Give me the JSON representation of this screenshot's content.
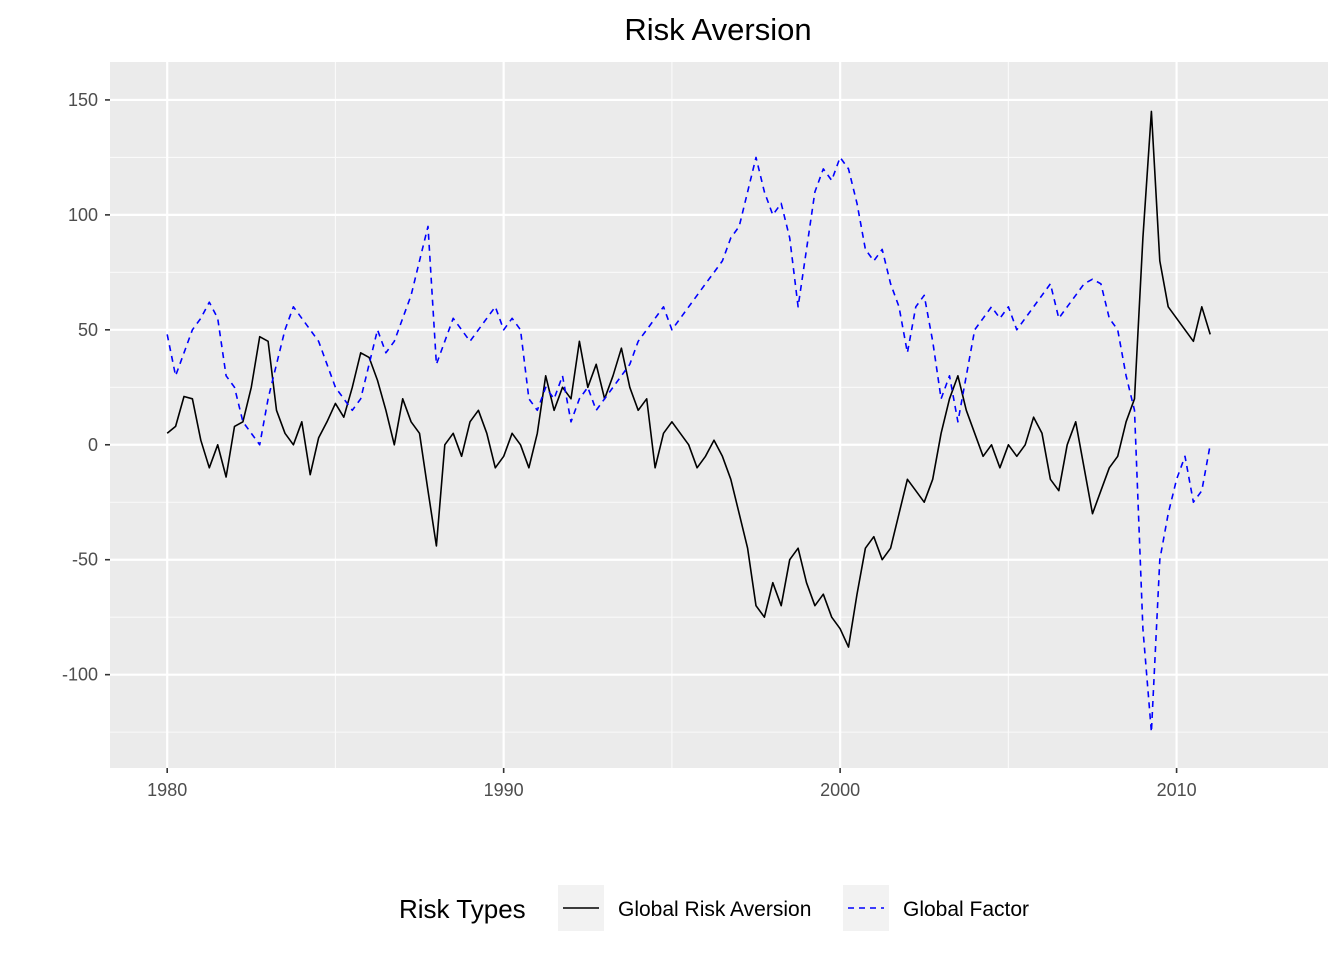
{
  "chart_data": {
    "type": "line",
    "title": "Risk Aversion",
    "xlabel": "",
    "ylabel": "",
    "xlim": [
      1978.3,
      2014.5
    ],
    "ylim": [
      -140.6,
      166.5
    ],
    "x_ticks": [
      1980,
      1990,
      2000,
      2010
    ],
    "x_minor_ticks": [
      1985,
      1995,
      2005
    ],
    "y_ticks": [
      -100,
      -50,
      0,
      50,
      100,
      150
    ],
    "y_minor_ticks": [
      -125,
      -75,
      -25,
      25,
      75,
      125
    ],
    "grid": true,
    "legend": {
      "title": "Risk Types",
      "position": "bottom"
    },
    "series": [
      {
        "name": "Global Risk Aversion",
        "color": "#000000",
        "linetype": "solid",
        "points": [
          [
            1980.0,
            5
          ],
          [
            1980.25,
            8
          ],
          [
            1980.5,
            21
          ],
          [
            1980.75,
            20
          ],
          [
            1981.0,
            2
          ],
          [
            1981.25,
            -10
          ],
          [
            1981.5,
            0
          ],
          [
            1981.75,
            -14
          ],
          [
            1982.0,
            8
          ],
          [
            1982.25,
            10
          ],
          [
            1982.5,
            25
          ],
          [
            1982.75,
            47
          ],
          [
            1983.0,
            45
          ],
          [
            1983.25,
            15
          ],
          [
            1983.5,
            5
          ],
          [
            1983.75,
            0
          ],
          [
            1984.0,
            10
          ],
          [
            1984.25,
            -13
          ],
          [
            1984.5,
            3
          ],
          [
            1984.75,
            10
          ],
          [
            1985.0,
            18
          ],
          [
            1985.25,
            12
          ],
          [
            1985.5,
            25
          ],
          [
            1985.75,
            40
          ],
          [
            1986.0,
            38
          ],
          [
            1986.25,
            28
          ],
          [
            1986.5,
            15
          ],
          [
            1986.75,
            0
          ],
          [
            1987.0,
            20
          ],
          [
            1987.25,
            10
          ],
          [
            1987.5,
            5
          ],
          [
            1987.75,
            -20
          ],
          [
            1988.0,
            -44
          ],
          [
            1988.25,
            0
          ],
          [
            1988.5,
            5
          ],
          [
            1988.75,
            -5
          ],
          [
            1989.0,
            10
          ],
          [
            1989.25,
            15
          ],
          [
            1989.5,
            5
          ],
          [
            1989.75,
            -10
          ],
          [
            1990.0,
            -5
          ],
          [
            1990.25,
            5
          ],
          [
            1990.5,
            0
          ],
          [
            1990.75,
            -10
          ],
          [
            1991.0,
            5
          ],
          [
            1991.25,
            30
          ],
          [
            1991.5,
            15
          ],
          [
            1991.75,
            25
          ],
          [
            1992.0,
            20
          ],
          [
            1992.25,
            45
          ],
          [
            1992.5,
            25
          ],
          [
            1992.75,
            35
          ],
          [
            1993.0,
            20
          ],
          [
            1993.25,
            30
          ],
          [
            1993.5,
            42
          ],
          [
            1993.75,
            25
          ],
          [
            1994.0,
            15
          ],
          [
            1994.25,
            20
          ],
          [
            1994.5,
            -10
          ],
          [
            1994.75,
            5
          ],
          [
            1995.0,
            10
          ],
          [
            1995.25,
            5
          ],
          [
            1995.5,
            0
          ],
          [
            1995.75,
            -10
          ],
          [
            1996.0,
            -5
          ],
          [
            1996.25,
            2
          ],
          [
            1996.5,
            -5
          ],
          [
            1996.75,
            -15
          ],
          [
            1997.0,
            -30
          ],
          [
            1997.25,
            -45
          ],
          [
            1997.5,
            -70
          ],
          [
            1997.75,
            -75
          ],
          [
            1998.0,
            -60
          ],
          [
            1998.25,
            -70
          ],
          [
            1998.5,
            -50
          ],
          [
            1998.75,
            -45
          ],
          [
            1999.0,
            -60
          ],
          [
            1999.25,
            -70
          ],
          [
            1999.5,
            -65
          ],
          [
            1999.75,
            -75
          ],
          [
            2000.0,
            -80
          ],
          [
            2000.25,
            -88
          ],
          [
            2000.5,
            -65
          ],
          [
            2000.75,
            -45
          ],
          [
            2001.0,
            -40
          ],
          [
            2001.25,
            -50
          ],
          [
            2001.5,
            -45
          ],
          [
            2001.75,
            -30
          ],
          [
            2002.0,
            -15
          ],
          [
            2002.25,
            -20
          ],
          [
            2002.5,
            -25
          ],
          [
            2002.75,
            -15
          ],
          [
            2003.0,
            5
          ],
          [
            2003.25,
            20
          ],
          [
            2003.5,
            30
          ],
          [
            2003.75,
            15
          ],
          [
            2004.0,
            5
          ],
          [
            2004.25,
            -5
          ],
          [
            2004.5,
            0
          ],
          [
            2004.75,
            -10
          ],
          [
            2005.0,
            0
          ],
          [
            2005.25,
            -5
          ],
          [
            2005.5,
            0
          ],
          [
            2005.75,
            12
          ],
          [
            2006.0,
            5
          ],
          [
            2006.25,
            -15
          ],
          [
            2006.5,
            -20
          ],
          [
            2006.75,
            0
          ],
          [
            2007.0,
            10
          ],
          [
            2007.25,
            -10
          ],
          [
            2007.5,
            -30
          ],
          [
            2007.75,
            -20
          ],
          [
            2008.0,
            -10
          ],
          [
            2008.25,
            -5
          ],
          [
            2008.5,
            10
          ],
          [
            2008.75,
            20
          ],
          [
            2009.0,
            90
          ],
          [
            2009.25,
            145
          ],
          [
            2009.5,
            80
          ],
          [
            2009.75,
            60
          ],
          [
            2010.0,
            55
          ],
          [
            2010.25,
            50
          ],
          [
            2010.5,
            45
          ],
          [
            2010.75,
            60
          ],
          [
            2011.0,
            48
          ]
        ]
      },
      {
        "name": "Global Factor",
        "color": "#0000ff",
        "linetype": "dashed",
        "points": [
          [
            1980.0,
            48
          ],
          [
            1980.25,
            30
          ],
          [
            1980.5,
            40
          ],
          [
            1980.75,
            50
          ],
          [
            1981.0,
            55
          ],
          [
            1981.25,
            62
          ],
          [
            1981.5,
            55
          ],
          [
            1981.75,
            30
          ],
          [
            1982.0,
            25
          ],
          [
            1982.25,
            10
          ],
          [
            1982.5,
            5
          ],
          [
            1982.75,
            0
          ],
          [
            1983.0,
            20
          ],
          [
            1983.25,
            35
          ],
          [
            1983.5,
            50
          ],
          [
            1983.75,
            60
          ],
          [
            1984.0,
            55
          ],
          [
            1984.25,
            50
          ],
          [
            1984.5,
            45
          ],
          [
            1984.75,
            35
          ],
          [
            1985.0,
            25
          ],
          [
            1985.25,
            20
          ],
          [
            1985.5,
            15
          ],
          [
            1985.75,
            20
          ],
          [
            1986.0,
            35
          ],
          [
            1986.25,
            50
          ],
          [
            1986.5,
            40
          ],
          [
            1986.75,
            45
          ],
          [
            1987.0,
            55
          ],
          [
            1987.25,
            65
          ],
          [
            1987.5,
            80
          ],
          [
            1987.75,
            95
          ],
          [
            1988.0,
            35
          ],
          [
            1988.25,
            45
          ],
          [
            1988.5,
            55
          ],
          [
            1988.75,
            50
          ],
          [
            1989.0,
            45
          ],
          [
            1989.25,
            50
          ],
          [
            1989.5,
            55
          ],
          [
            1989.75,
            60
          ],
          [
            1990.0,
            50
          ],
          [
            1990.25,
            55
          ],
          [
            1990.5,
            50
          ],
          [
            1990.75,
            20
          ],
          [
            1991.0,
            15
          ],
          [
            1991.25,
            25
          ],
          [
            1991.5,
            20
          ],
          [
            1991.75,
            30
          ],
          [
            1992.0,
            10
          ],
          [
            1992.25,
            20
          ],
          [
            1992.5,
            25
          ],
          [
            1992.75,
            15
          ],
          [
            1993.0,
            20
          ],
          [
            1993.25,
            25
          ],
          [
            1993.5,
            30
          ],
          [
            1993.75,
            35
          ],
          [
            1994.0,
            45
          ],
          [
            1994.25,
            50
          ],
          [
            1994.5,
            55
          ],
          [
            1994.75,
            60
          ],
          [
            1995.0,
            50
          ],
          [
            1995.25,
            55
          ],
          [
            1995.5,
            60
          ],
          [
            1995.75,
            65
          ],
          [
            1996.0,
            70
          ],
          [
            1996.25,
            75
          ],
          [
            1996.5,
            80
          ],
          [
            1996.75,
            90
          ],
          [
            1997.0,
            95
          ],
          [
            1997.25,
            110
          ],
          [
            1997.5,
            125
          ],
          [
            1997.75,
            110
          ],
          [
            1998.0,
            100
          ],
          [
            1998.25,
            105
          ],
          [
            1998.5,
            90
          ],
          [
            1998.75,
            60
          ],
          [
            1999.0,
            85
          ],
          [
            1999.25,
            110
          ],
          [
            1999.5,
            120
          ],
          [
            1999.75,
            115
          ],
          [
            2000.0,
            125
          ],
          [
            2000.25,
            120
          ],
          [
            2000.5,
            105
          ],
          [
            2000.75,
            85
          ],
          [
            2001.0,
            80
          ],
          [
            2001.25,
            85
          ],
          [
            2001.5,
            70
          ],
          [
            2001.75,
            60
          ],
          [
            2002.0,
            40
          ],
          [
            2002.25,
            60
          ],
          [
            2002.5,
            65
          ],
          [
            2002.75,
            45
          ],
          [
            2003.0,
            20
          ],
          [
            2003.25,
            30
          ],
          [
            2003.5,
            10
          ],
          [
            2003.75,
            30
          ],
          [
            2004.0,
            50
          ],
          [
            2004.25,
            55
          ],
          [
            2004.5,
            60
          ],
          [
            2004.75,
            55
          ],
          [
            2005.0,
            60
          ],
          [
            2005.25,
            50
          ],
          [
            2005.5,
            55
          ],
          [
            2005.75,
            60
          ],
          [
            2006.0,
            65
          ],
          [
            2006.25,
            70
          ],
          [
            2006.5,
            55
          ],
          [
            2006.75,
            60
          ],
          [
            2007.0,
            65
          ],
          [
            2007.25,
            70
          ],
          [
            2007.5,
            72
          ],
          [
            2007.75,
            70
          ],
          [
            2008.0,
            55
          ],
          [
            2008.25,
            50
          ],
          [
            2008.5,
            30
          ],
          [
            2008.75,
            15
          ],
          [
            2009.0,
            -80
          ],
          [
            2009.25,
            -125
          ],
          [
            2009.5,
            -50
          ],
          [
            2009.75,
            -30
          ],
          [
            2010.0,
            -15
          ],
          [
            2010.25,
            -5
          ],
          [
            2010.5,
            -25
          ],
          [
            2010.75,
            -20
          ],
          [
            2011.0,
            0
          ]
        ]
      }
    ]
  }
}
